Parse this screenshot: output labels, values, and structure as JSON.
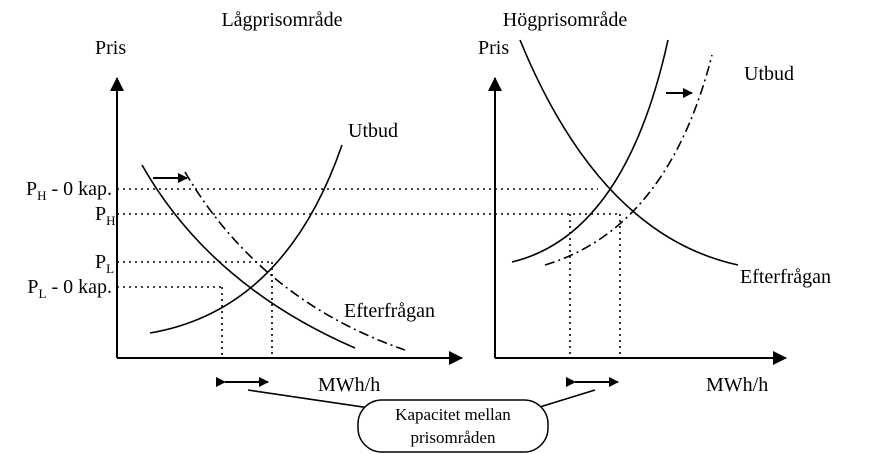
{
  "left_panel": {
    "title": "Lågprisområde",
    "y_label": "Pris",
    "x_label": "MWh/h",
    "supply_label": "Utbud",
    "demand_label": "Efterfrågan"
  },
  "right_panel": {
    "title": "Högprisområde",
    "y_label": "Pris",
    "x_label": "MWh/h",
    "supply_label": "Utbud",
    "demand_label": "Efterfrågan"
  },
  "price_labels": [
    {
      "symbol": "P",
      "subscript": "H",
      "suffix": " - 0 kap."
    },
    {
      "symbol": "P",
      "subscript": "H"
    },
    {
      "symbol": "P",
      "subscript": "L"
    },
    {
      "symbol": "P",
      "subscript": "L",
      "suffix": " - 0 kap."
    }
  ],
  "callout": {
    "lines": [
      "Kapacitet mellan",
      "prisområden"
    ]
  }
}
